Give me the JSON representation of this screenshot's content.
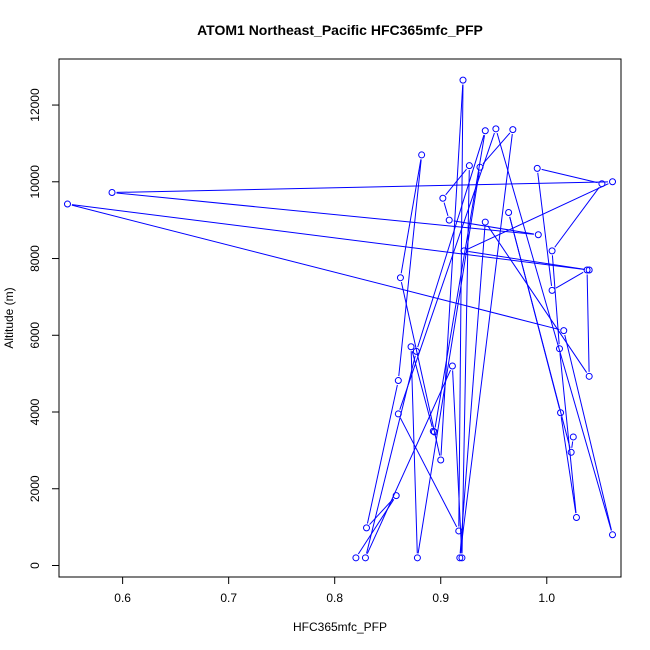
{
  "chart_data": {
    "type": "line",
    "title": "ATOM1 Northeast_Pacific HFC365mfc_PFP",
    "xlabel": "HFC365mfc_PFP",
    "ylabel": "Altitude (m)",
    "xlim": [
      0.54,
      1.07
    ],
    "ylim": [
      -300,
      13200
    ],
    "xticks": [
      0.6,
      0.7,
      0.8,
      0.9,
      1.0
    ],
    "xtick_labels": [
      "0.6",
      "0.7",
      "0.8",
      "0.9",
      "1.0"
    ],
    "yticks": [
      0,
      2000,
      4000,
      6000,
      8000,
      10000,
      12000
    ],
    "ytick_labels": [
      "0",
      "2000",
      "4000",
      "6000",
      "8000",
      "10000",
      "12000"
    ],
    "grid": false,
    "series": [
      {
        "color": "#0000ff",
        "marker": "open-circle",
        "points": [
          [
            0.82,
            200
          ],
          [
            0.858,
            1820
          ],
          [
            0.83,
            980
          ],
          [
            0.86,
            4820
          ],
          [
            0.882,
            10700
          ],
          [
            0.862,
            7500
          ],
          [
            0.9,
            2750
          ],
          [
            0.921,
            12650
          ],
          [
            0.917,
            900
          ],
          [
            0.86,
            3950
          ],
          [
            0.952,
            11380
          ],
          [
            1.062,
            800
          ],
          [
            1.016,
            6120
          ],
          [
            0.548,
            9420
          ],
          [
            1.04,
            7700
          ],
          [
            0.922,
            8200
          ],
          [
            1.062,
            10000
          ],
          [
            0.59,
            9720
          ],
          [
            0.992,
            8620
          ],
          [
            0.908,
            9000
          ],
          [
            0.902,
            9570
          ],
          [
            0.927,
            10420
          ],
          [
            0.92,
            200
          ],
          [
            0.911,
            5200
          ],
          [
            0.829,
            200
          ],
          [
            0.877,
            5580
          ],
          [
            0.942,
            11330
          ],
          [
            0.894,
            3480
          ],
          [
            0.893,
            3500
          ],
          [
            0.872,
            5700
          ],
          [
            0.878,
            200
          ],
          [
            0.937,
            10380
          ],
          [
            0.968,
            11360
          ],
          [
            0.918,
            200
          ],
          [
            0.942,
            8950
          ],
          [
            1.04,
            4930
          ],
          [
            1.038,
            7700
          ],
          [
            1.005,
            7170
          ],
          [
            0.991,
            10350
          ],
          [
            1.052,
            9950
          ],
          [
            1.005,
            8200
          ],
          [
            1.012,
            5650
          ],
          [
            1.028,
            1250
          ],
          [
            1.013,
            3980
          ],
          [
            0.964,
            9200
          ],
          [
            1.023,
            2950
          ],
          [
            1.025,
            3350
          ]
        ]
      }
    ]
  }
}
